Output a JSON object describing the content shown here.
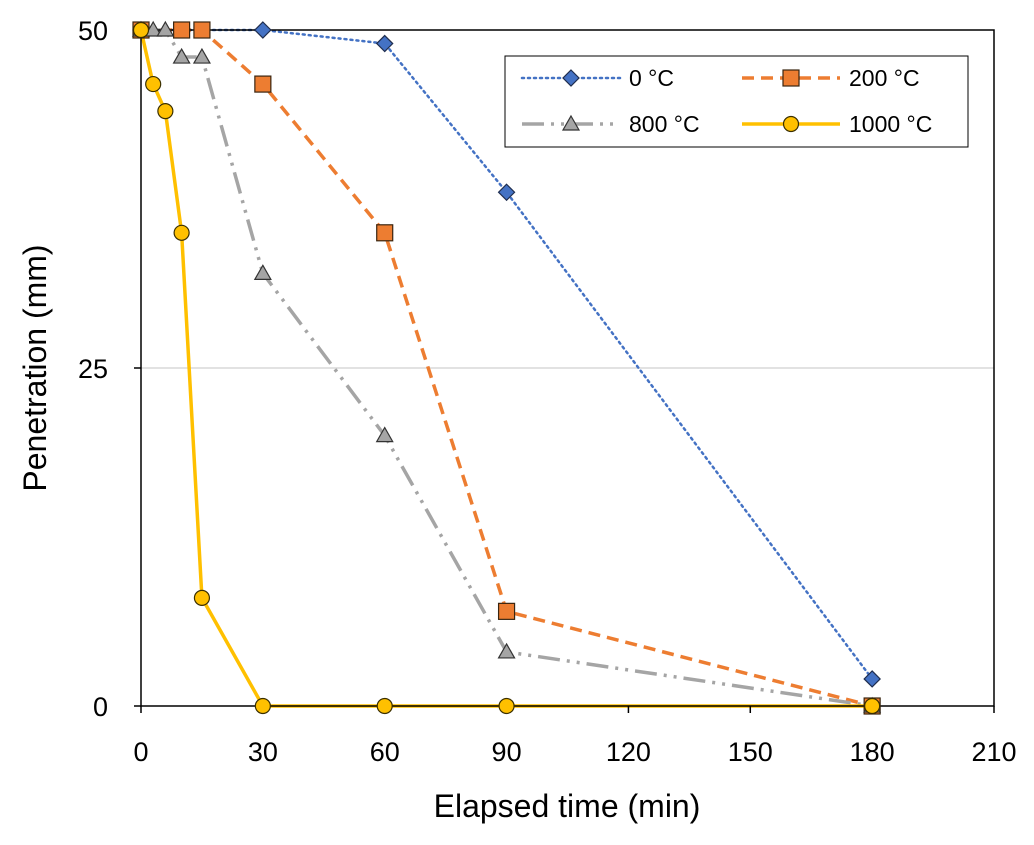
{
  "chart_data": {
    "type": "line",
    "title": "",
    "xlabel": "Elapsed time (min)",
    "ylabel": "Penetration (mm)",
    "xlim": [
      0,
      210
    ],
    "ylim": [
      0,
      50
    ],
    "xticks": [
      0,
      30,
      60,
      90,
      120,
      150,
      180,
      210
    ],
    "yticks": [
      0,
      25,
      50
    ],
    "grid": "horizontal gridline at 25",
    "legend_position": "top-right",
    "series": [
      {
        "name": "0 °C",
        "color": "#4472C4",
        "marker": "diamond",
        "line": "dotted",
        "x": [
          0,
          30,
          60,
          90,
          180
        ],
        "y": [
          50,
          50,
          49,
          38,
          2
        ]
      },
      {
        "name": "200 °C",
        "color": "#ED7D31",
        "marker": "square",
        "line": "dashed",
        "x": [
          0,
          10,
          15,
          30,
          60,
          90,
          180
        ],
        "y": [
          50,
          50,
          50,
          46,
          35,
          7,
          0
        ]
      },
      {
        "name": "800 °C",
        "color": "#A5A5A5",
        "marker": "triangle",
        "line": "dash-dot-dot",
        "x": [
          0,
          3,
          6,
          10,
          15,
          30,
          60,
          90,
          180
        ],
        "y": [
          50,
          50,
          50,
          48,
          48,
          32,
          20,
          4,
          0
        ]
      },
      {
        "name": "1000 °C",
        "color": "#FFC000",
        "marker": "circle",
        "line": "solid",
        "x": [
          0,
          3,
          6,
          10,
          15,
          30,
          60,
          90,
          180
        ],
        "y": [
          50,
          46,
          44,
          35,
          8,
          0,
          0,
          0,
          0
        ]
      }
    ]
  }
}
